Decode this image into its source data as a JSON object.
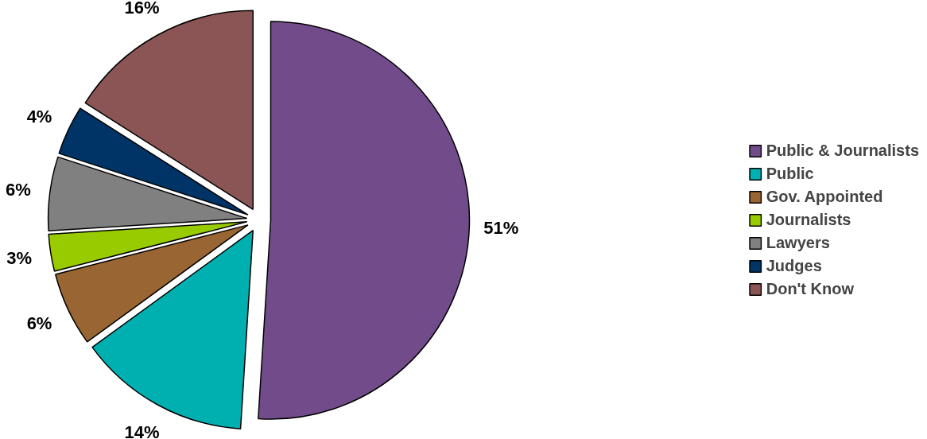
{
  "chart_data": {
    "type": "pie",
    "categories": [
      "Public & Journalists",
      "Public",
      "Gov. Appointed",
      "Journalists",
      "Lawyers",
      "Judges",
      "Don't Know"
    ],
    "values": [
      51,
      14,
      6,
      3,
      6,
      4,
      16
    ],
    "colors": [
      "#724c8a",
      "#00b0b0",
      "#996633",
      "#99cc00",
      "#808080",
      "#003366",
      "#8b5555"
    ],
    "value_labels": [
      "51%",
      "14%",
      "6%",
      "3%",
      "6%",
      "4%",
      "16%"
    ],
    "legend": "right"
  }
}
